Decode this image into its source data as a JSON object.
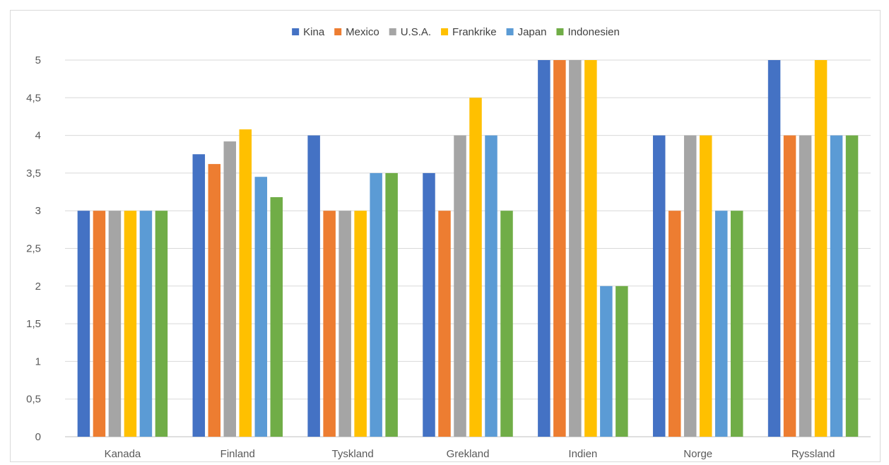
{
  "chart_data": {
    "type": "bar",
    "categories": [
      "Kanada",
      "Finland",
      "Tyskland",
      "Grekland",
      "Indien",
      "Norge",
      "Ryssland"
    ],
    "series": [
      {
        "name": "Kina",
        "color": "#4472c4",
        "values": [
          3,
          3.75,
          4,
          3.5,
          5,
          4,
          5
        ]
      },
      {
        "name": "Mexico",
        "color": "#ed7d31",
        "values": [
          3,
          3.62,
          3,
          3,
          5,
          3,
          4
        ]
      },
      {
        "name": "U.S.A.",
        "color": "#a5a5a5",
        "values": [
          3,
          3.92,
          3,
          4,
          5,
          4,
          4
        ]
      },
      {
        "name": "Frankrike",
        "color": "#ffc000",
        "values": [
          3,
          4.08,
          3,
          4.5,
          5,
          4,
          5
        ]
      },
      {
        "name": "Japan",
        "color": "#5b9bd5",
        "values": [
          3,
          3.45,
          3.5,
          4,
          2,
          3,
          4
        ]
      },
      {
        "name": "Indonesien",
        "color": "#70ad47",
        "values": [
          3,
          3.18,
          3.5,
          3,
          2,
          3,
          4
        ]
      }
    ],
    "y_ticks": [
      "0",
      "0,5",
      "1",
      "1,5",
      "2",
      "2,5",
      "3",
      "3,5",
      "4",
      "4,5",
      "5"
    ],
    "ylim": [
      0,
      5
    ],
    "grid": true,
    "legend_position": "top"
  }
}
